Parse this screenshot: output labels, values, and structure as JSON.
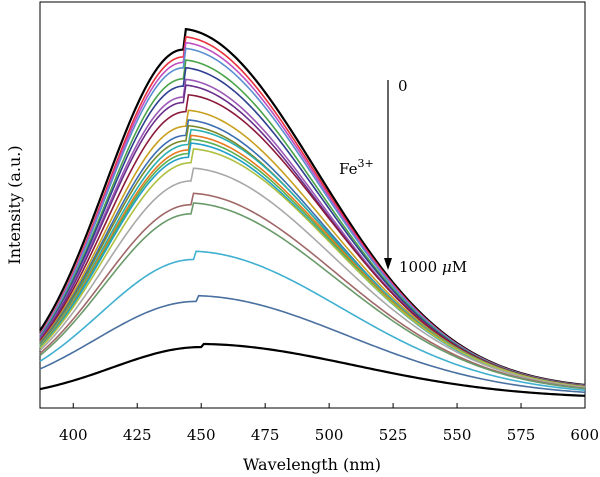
{
  "chart_data": {
    "type": "line",
    "title": "",
    "xlabel": "Wavelength (nm)",
    "ylabel": "Intensity (a.u.)",
    "xlim": [
      387,
      600
    ],
    "ylim": [
      0,
      1
    ],
    "xticks": [
      400,
      425,
      450,
      475,
      500,
      525,
      550,
      575,
      600
    ],
    "grid": false,
    "legend": "none",
    "annotations": {
      "start_label": "0",
      "ion_label": "Fe",
      "ion_charge": "3+",
      "end_value": "1000 ",
      "end_unit_symbol": "μ",
      "end_unit": "M"
    },
    "series": [
      {
        "color": "#000000",
        "peak_x": 443,
        "peak_y": 0.96,
        "start_y": 0.19
      },
      {
        "color": "#e8303c",
        "peak_x": 443,
        "peak_y": 0.94,
        "start_y": 0.18
      },
      {
        "color": "#c04fc2",
        "peak_x": 443,
        "peak_y": 0.925,
        "start_y": 0.178
      },
      {
        "color": "#5a8fd0",
        "peak_x": 443,
        "peak_y": 0.91,
        "start_y": 0.176
      },
      {
        "color": "#4aa34a",
        "peak_x": 443,
        "peak_y": 0.88,
        "start_y": 0.172
      },
      {
        "color": "#2f3f8f",
        "peak_x": 443,
        "peak_y": 0.86,
        "start_y": 0.17
      },
      {
        "color": "#9b59b6",
        "peak_x": 443,
        "peak_y": 0.83,
        "start_y": 0.168
      },
      {
        "color": "#6a2f8a",
        "peak_x": 443,
        "peak_y": 0.815,
        "start_y": 0.165
      },
      {
        "color": "#8b1a3a",
        "peak_x": 444,
        "peak_y": 0.79,
        "start_y": 0.162
      },
      {
        "color": "#c8a020",
        "peak_x": 444,
        "peak_y": 0.75,
        "start_y": 0.158
      },
      {
        "color": "#3a6db0",
        "peak_x": 444,
        "peak_y": 0.725,
        "start_y": 0.155
      },
      {
        "color": "#7a8a2a",
        "peak_x": 444,
        "peak_y": 0.71,
        "start_y": 0.152
      },
      {
        "color": "#2ab0b0",
        "peak_x": 445,
        "peak_y": 0.7,
        "start_y": 0.15
      },
      {
        "color": "#e87a20",
        "peak_x": 445,
        "peak_y": 0.685,
        "start_y": 0.148
      },
      {
        "color": "#5ab050",
        "peak_x": 445,
        "peak_y": 0.675,
        "start_y": 0.146
      },
      {
        "color": "#20a0c8",
        "peak_x": 445,
        "peak_y": 0.665,
        "start_y": 0.144
      },
      {
        "color": "#b0c040",
        "peak_x": 446,
        "peak_y": 0.65,
        "start_y": 0.142
      },
      {
        "color": "#a8a8a8",
        "peak_x": 446,
        "peak_y": 0.6,
        "start_y": 0.136
      },
      {
        "color": "#a06868",
        "peak_x": 446,
        "peak_y": 0.535,
        "start_y": 0.128
      },
      {
        "color": "#6a9a6a",
        "peak_x": 446,
        "peak_y": 0.51,
        "start_y": 0.122
      },
      {
        "color": "#40b0d0",
        "peak_x": 447,
        "peak_y": 0.385,
        "start_y": 0.106
      },
      {
        "color": "#4a70a0",
        "peak_x": 448,
        "peak_y": 0.27,
        "start_y": 0.085
      },
      {
        "color": "#000000",
        "peak_x": 450,
        "peak_y": 0.145,
        "start_y": 0.03
      }
    ]
  }
}
